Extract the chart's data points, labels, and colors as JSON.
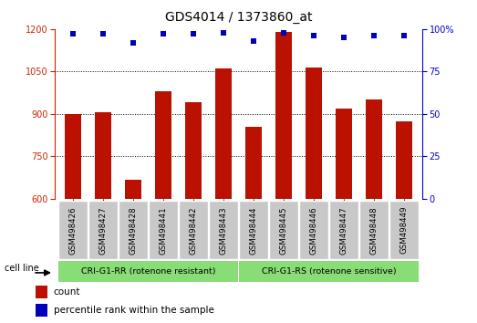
{
  "title": "GDS4014 / 1373860_at",
  "categories": [
    "GSM498426",
    "GSM498427",
    "GSM498428",
    "GSM498441",
    "GSM498442",
    "GSM498443",
    "GSM498444",
    "GSM498445",
    "GSM498446",
    "GSM498447",
    "GSM498448",
    "GSM498449"
  ],
  "count_values": [
    900,
    907,
    668,
    980,
    940,
    1060,
    855,
    1190,
    1065,
    920,
    950,
    875
  ],
  "percentile_values": [
    97,
    97,
    92,
    97,
    97,
    98,
    93,
    98,
    96,
    95,
    96,
    96
  ],
  "bar_color": "#bb1100",
  "dot_color": "#0000bb",
  "ylim_left": [
    600,
    1200
  ],
  "ylim_right": [
    0,
    100
  ],
  "yticks_left": [
    600,
    750,
    900,
    1050,
    1200
  ],
  "yticks_right": [
    0,
    25,
    50,
    75,
    100
  ],
  "group1_label": "CRI-G1-RR (rotenone resistant)",
  "group2_label": "CRI-G1-RS (rotenone sensitive)",
  "group_color": "#88dd77",
  "cell_line_label": "cell line",
  "legend_count_label": "count",
  "legend_percentile_label": "percentile rank within the sample",
  "background_color": "#ffffff",
  "tick_label_bg": "#c8c8c8",
  "title_fontsize": 10,
  "axis_label_fontsize": 7,
  "legend_fontsize": 7.5
}
